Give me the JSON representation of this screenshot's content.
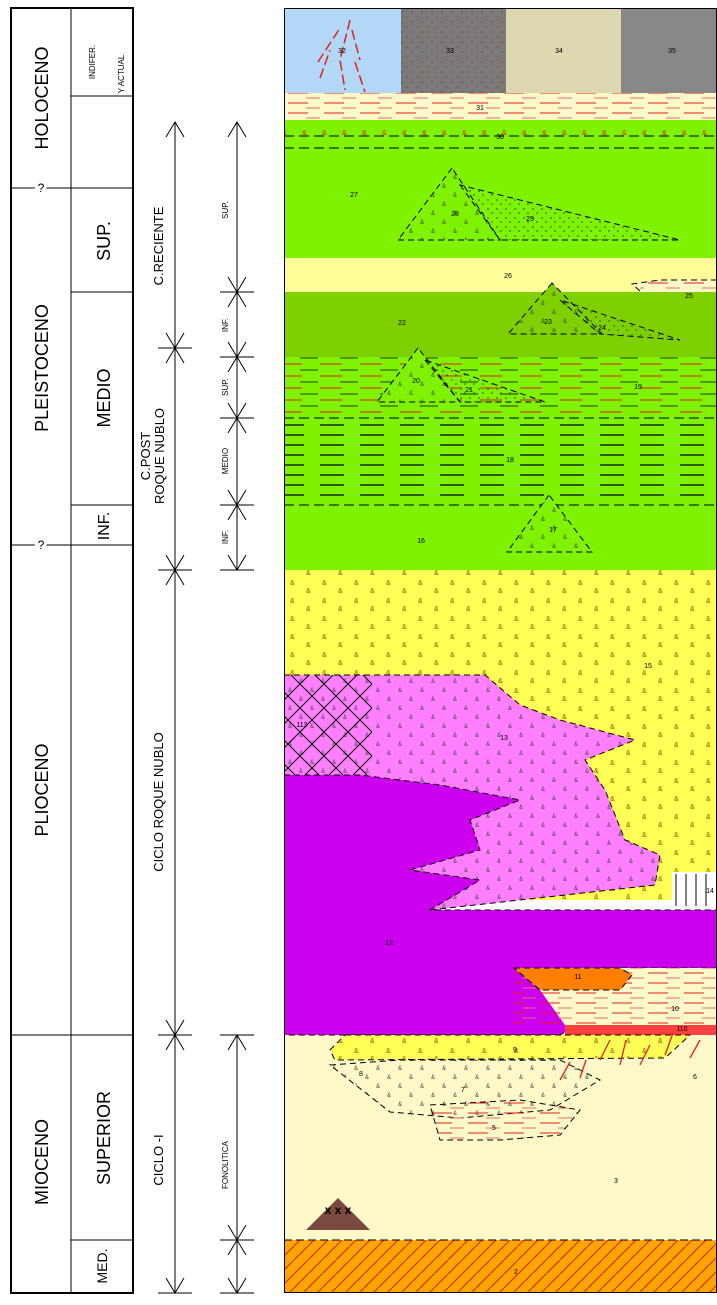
{
  "epochs": {
    "holoceno": "HOLOCENO",
    "pleistoceno": "PLEISTOCENO",
    "plioceno": "PLIOCENO",
    "mioceno": "MIOCENO",
    "uncertain_mark": "?"
  },
  "sub_epochs": {
    "indiferenciado": "INDIFER.",
    "actual": "Y ACTUAL",
    "sup": "SUP.",
    "medio": "MEDIO",
    "inf": "INF.",
    "superior": "SUPERIOR",
    "med": "MED."
  },
  "cycles": {
    "reciente": "C.RECIENTE",
    "post_roque_nublo_1": "C.POST",
    "post_roque_nublo_2": "ROQUE NUBLO",
    "roque_nublo": "CICLO ROQUE NUBLO",
    "ciclo_1": "CICLO -I"
  },
  "phases": {
    "sup_reciente": "SUP.",
    "inf_reciente": "INF.",
    "sup_post": "SUP.",
    "medio_post": "MEDIO",
    "inf_post": "INF.",
    "fonolitica": "FONOLITICA"
  },
  "units": [
    "32",
    "33",
    "34",
    "35",
    "31",
    "30",
    "27",
    "28",
    "29",
    "26",
    "25",
    "22",
    "23",
    "24",
    "20",
    "21",
    "19",
    "18",
    "17",
    "16",
    "15",
    "113",
    "13",
    "14",
    "12",
    "11",
    "10",
    "110",
    "9",
    "8",
    "7",
    "6",
    "5",
    "3",
    "2"
  ],
  "colors": {
    "sky": "#b3d7f7",
    "grey_dark": "#7a7a7a",
    "beige": "#ddd8b0",
    "grey": "#888888",
    "cream": "#fff8c8",
    "lime": "#7ff200",
    "olive_green": "#7fd000",
    "yellow_light": "#ffff99",
    "yellow": "#ffff55",
    "pink": "#ff7fff",
    "purple": "#cc00ee",
    "orange": "#ff8000",
    "base_orange": "#ffa500",
    "red": "#ff2020",
    "brown": "#7a4a40"
  }
}
